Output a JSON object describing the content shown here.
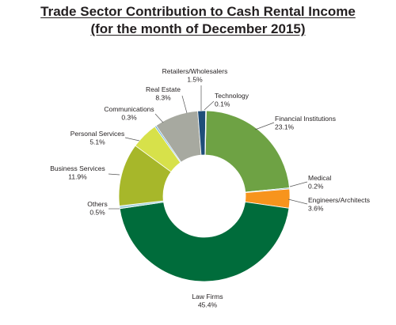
{
  "chart_data": {
    "type": "pie",
    "variant": "donut",
    "title": "Trade Sector Contribution to Cash Rental Income",
    "subtitle": "(for the month of December 2015)",
    "slices": [
      {
        "label": "Financial Institutions",
        "value": 23.1,
        "value_label": "23.1%",
        "color": "#6ea244"
      },
      {
        "label": "Medical",
        "value": 0.2,
        "value_label": "0.2%",
        "color": "#4e95bf"
      },
      {
        "label": "Engineers/Architects",
        "value": 3.6,
        "value_label": "3.6%",
        "color": "#f7941d"
      },
      {
        "label": "Law Firms",
        "value": 45.4,
        "value_label": "45.4%",
        "color": "#006c3b"
      },
      {
        "label": "Others",
        "value": 0.5,
        "value_label": "0.5%",
        "color": "#a5d3dc"
      },
      {
        "label": "Business Services",
        "value": 11.9,
        "value_label": "11.9%",
        "color": "#a7b72a"
      },
      {
        "label": "Personal Services",
        "value": 5.1,
        "value_label": "5.1%",
        "color": "#d7e14a"
      },
      {
        "label": "Communications",
        "value": 0.3,
        "value_label": "0.3%",
        "color": "#5fa7d6"
      },
      {
        "label": "Real Estate",
        "value": 8.3,
        "value_label": "8.3%",
        "color": "#a7a9a0"
      },
      {
        "label": "Retailers/Wholesalers",
        "value": 1.5,
        "value_label": "1.5%",
        "color": "#1f4e79"
      },
      {
        "label": "Technology",
        "value": 0.1,
        "value_label": "0.1%",
        "color": "#2c7f9c"
      }
    ],
    "legend": "none"
  }
}
